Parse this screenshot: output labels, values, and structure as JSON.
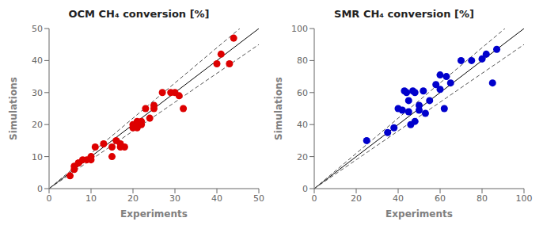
{
  "chart_data": [
    {
      "type": "scatter",
      "title": "OCM CH₄ conversion [%]",
      "xlabel": "Experiments",
      "ylabel": "Simulations",
      "xlim": [
        0,
        50
      ],
      "ylim": [
        0,
        50
      ],
      "xticks": [
        0,
        10,
        20,
        30,
        40,
        50
      ],
      "yticks": [
        0,
        10,
        20,
        30,
        40,
        50
      ],
      "color": "#dd0000",
      "x": [
        5,
        6,
        6,
        7,
        7,
        8,
        9,
        10,
        10,
        11,
        13,
        15,
        15,
        16,
        17,
        17,
        18,
        20,
        20,
        21,
        21,
        22,
        22,
        23,
        24,
        25,
        25,
        27,
        29,
        30,
        31,
        32,
        40,
        41,
        43,
        44
      ],
      "values": [
        4,
        6,
        7,
        8,
        8,
        9,
        9,
        10,
        9,
        13,
        14,
        13,
        10,
        15,
        13,
        14,
        13,
        19,
        20,
        21,
        19,
        20,
        21,
        25,
        22,
        25,
        26,
        30,
        30,
        30,
        29,
        25,
        39,
        42,
        39,
        47
      ],
      "band_pct": 10
    },
    {
      "type": "scatter",
      "title": "SMR CH₄ conversion [%]",
      "xlabel": "Experiments",
      "ylabel": "Simulations",
      "xlim": [
        0,
        100
      ],
      "ylim": [
        0,
        100
      ],
      "xticks": [
        0,
        20,
        40,
        60,
        80,
        100
      ],
      "yticks": [
        0,
        20,
        40,
        60,
        80,
        100
      ],
      "color": "#0000cc",
      "x": [
        25,
        35,
        38,
        40,
        42,
        43,
        44,
        45,
        45,
        46,
        47,
        48,
        48,
        50,
        50,
        52,
        53,
        55,
        58,
        60,
        60,
        62,
        63,
        65,
        70,
        75,
        80,
        82,
        85,
        87
      ],
      "values": [
        30,
        35,
        38,
        50,
        49,
        61,
        60,
        48,
        55,
        40,
        61,
        60,
        42,
        49,
        52,
        61,
        47,
        55,
        65,
        62,
        71,
        50,
        70,
        66,
        80,
        80,
        81,
        84,
        66,
        87
      ],
      "band_pct": 10
    }
  ]
}
